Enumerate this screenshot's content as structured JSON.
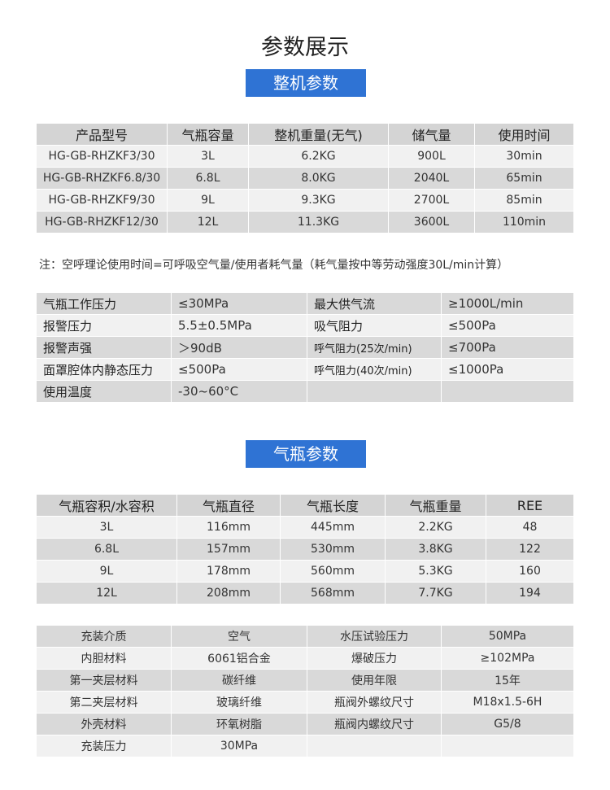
{
  "title": "参数展示",
  "section1": "整机参数",
  "machine_table": {
    "headers": [
      "产品型号",
      "气瓶容量",
      "整机重量(无气)",
      "储气量",
      "使用时间"
    ],
    "rows": [
      [
        "HG-GB-RHZKF3/30",
        "3L",
        "6.2KG",
        "900L",
        "30min"
      ],
      [
        "HG-GB-RHZKF6.8/30",
        "6.8L",
        "8.0KG",
        "2040L",
        "65min"
      ],
      [
        "HG-GB-RHZKF9/30",
        "9L",
        "9.3KG",
        "2700L",
        "85min"
      ],
      [
        "HG-GB-RHZKF12/30",
        "12L",
        "11.3KG",
        "3600L",
        "110min"
      ]
    ]
  },
  "note": "注：空呼理论使用时间=可呼吸空气量/使用者耗气量（耗气量按中等劳动强度30L/min计算）",
  "spec_table": {
    "rows": [
      [
        "气瓶工作压力",
        "≤30MPa",
        "最大供气流",
        "≥1000L/min"
      ],
      [
        "报警压力",
        "5.5±0.5MPa",
        "吸气阻力",
        "≤500Pa"
      ],
      [
        "报警声强",
        "＞90dB",
        "呼气阻力(25次/min)",
        "≤700Pa"
      ],
      [
        "面罩腔体内静态压力",
        "≤500Pa",
        "呼气阻力(40次/min)",
        "≤1000Pa"
      ],
      [
        "使用温度",
        "-30~60°C",
        "",
        ""
      ]
    ]
  },
  "section2": "气瓶参数",
  "cylinder_table": {
    "headers": [
      "气瓶容积/水容积",
      "气瓶直径",
      "气瓶长度",
      "气瓶重量",
      "REE"
    ],
    "rows": [
      [
        "3L",
        "116mm",
        "445mm",
        "2.2KG",
        "48"
      ],
      [
        "6.8L",
        "157mm",
        "530mm",
        "3.8KG",
        "122"
      ],
      [
        "9L",
        "178mm",
        "560mm",
        "5.3KG",
        "160"
      ],
      [
        "12L",
        "208mm",
        "568mm",
        "7.7KG",
        "194"
      ]
    ]
  },
  "material_table": {
    "rows": [
      [
        "充装介质",
        "空气",
        "水压试验压力",
        "50MPa"
      ],
      [
        "内胆材料",
        "6061铝合金",
        "爆破压力",
        "≥102MPa"
      ],
      [
        "第一夹层材料",
        "碳纤维",
        "使用年限",
        "15年"
      ],
      [
        "第二夹层材料",
        "玻璃纤维",
        "瓶阀外螺纹尺寸",
        "M18x1.5-6H"
      ],
      [
        "外壳材料",
        "环氧树脂",
        "瓶阀内螺纹尺寸",
        "G5/8"
      ],
      [
        "充装压力",
        "30MPa",
        "",
        ""
      ]
    ]
  },
  "colors": {
    "banner": "#2f73d4",
    "header_row": "#d4d4d4",
    "row_light": "#f1f1f1",
    "row_dark": "#d9d9d9"
  }
}
